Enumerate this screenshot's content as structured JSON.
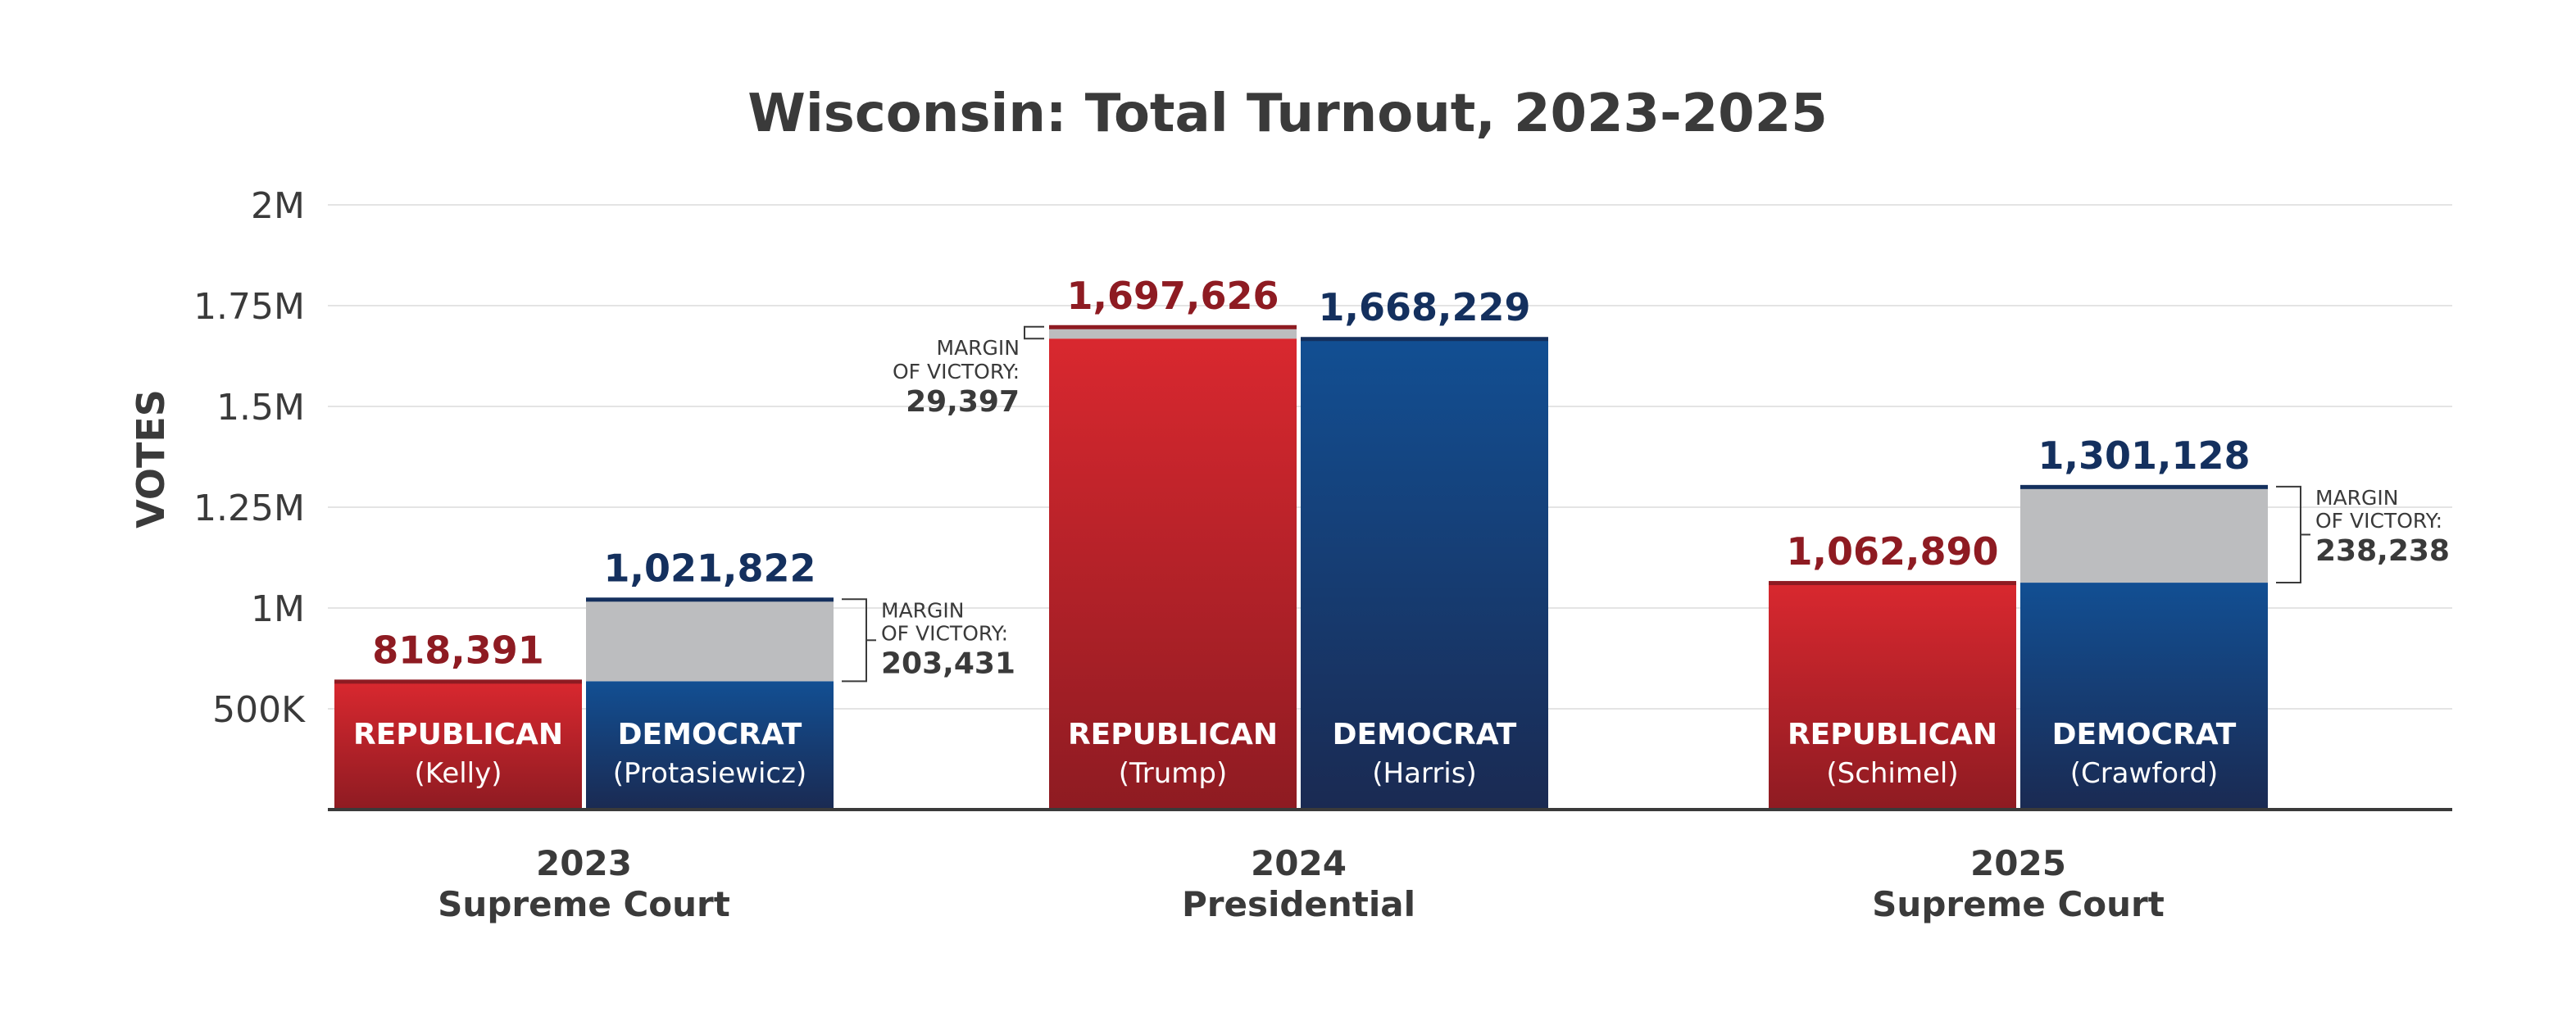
{
  "chart_data": {
    "type": "bar",
    "title": "Wisconsin: Total Turnout, 2023-2025",
    "ylabel": "VOTES",
    "ylim": [
      0,
      2000000
    ],
    "y_ticks": [
      {
        "value": 500000,
        "label": "500K"
      },
      {
        "value": 1000000,
        "label": "1M"
      },
      {
        "value": 1250000,
        "label": "1.25M"
      },
      {
        "value": 1500000,
        "label": "1.5M"
      },
      {
        "value": 1750000,
        "label": "1.75M"
      },
      {
        "value": 2000000,
        "label": "2M"
      }
    ],
    "grid": true,
    "margin_label_line1": "MARGIN",
    "margin_label_line2": "OF VICTORY:",
    "colors": {
      "republican": "#c8252c",
      "democrat": "#124a8c",
      "margin": "#bcbdbf"
    },
    "groups": [
      {
        "year": "2023",
        "race": "Supreme Court",
        "bars": [
          {
            "party": "REPUBLICAN",
            "candidate": "(Kelly)",
            "value": 818391,
            "value_label": "818,391"
          },
          {
            "party": "DEMOCRAT",
            "candidate": "(Protasiewicz)",
            "value": 1021822,
            "value_label": "1,021,822"
          }
        ],
        "margin": 203431,
        "margin_label": "203,431"
      },
      {
        "year": "2024",
        "race": "Presidential",
        "bars": [
          {
            "party": "REPUBLICAN",
            "candidate": "(Trump)",
            "value": 1697626,
            "value_label": "1,697,626"
          },
          {
            "party": "DEMOCRAT",
            "candidate": "(Harris)",
            "value": 1668229,
            "value_label": "1,668,229"
          }
        ],
        "margin": 29397,
        "margin_label": "29,397"
      },
      {
        "year": "2025",
        "race": "Supreme Court",
        "bars": [
          {
            "party": "REPUBLICAN",
            "candidate": "(Schimel)",
            "value": 1062890,
            "value_label": "1,062,890"
          },
          {
            "party": "DEMOCRAT",
            "candidate": "(Crawford)",
            "value": 1301128,
            "value_label": "1,301,128"
          }
        ],
        "margin": 238238,
        "margin_label": "238,238"
      }
    ]
  }
}
